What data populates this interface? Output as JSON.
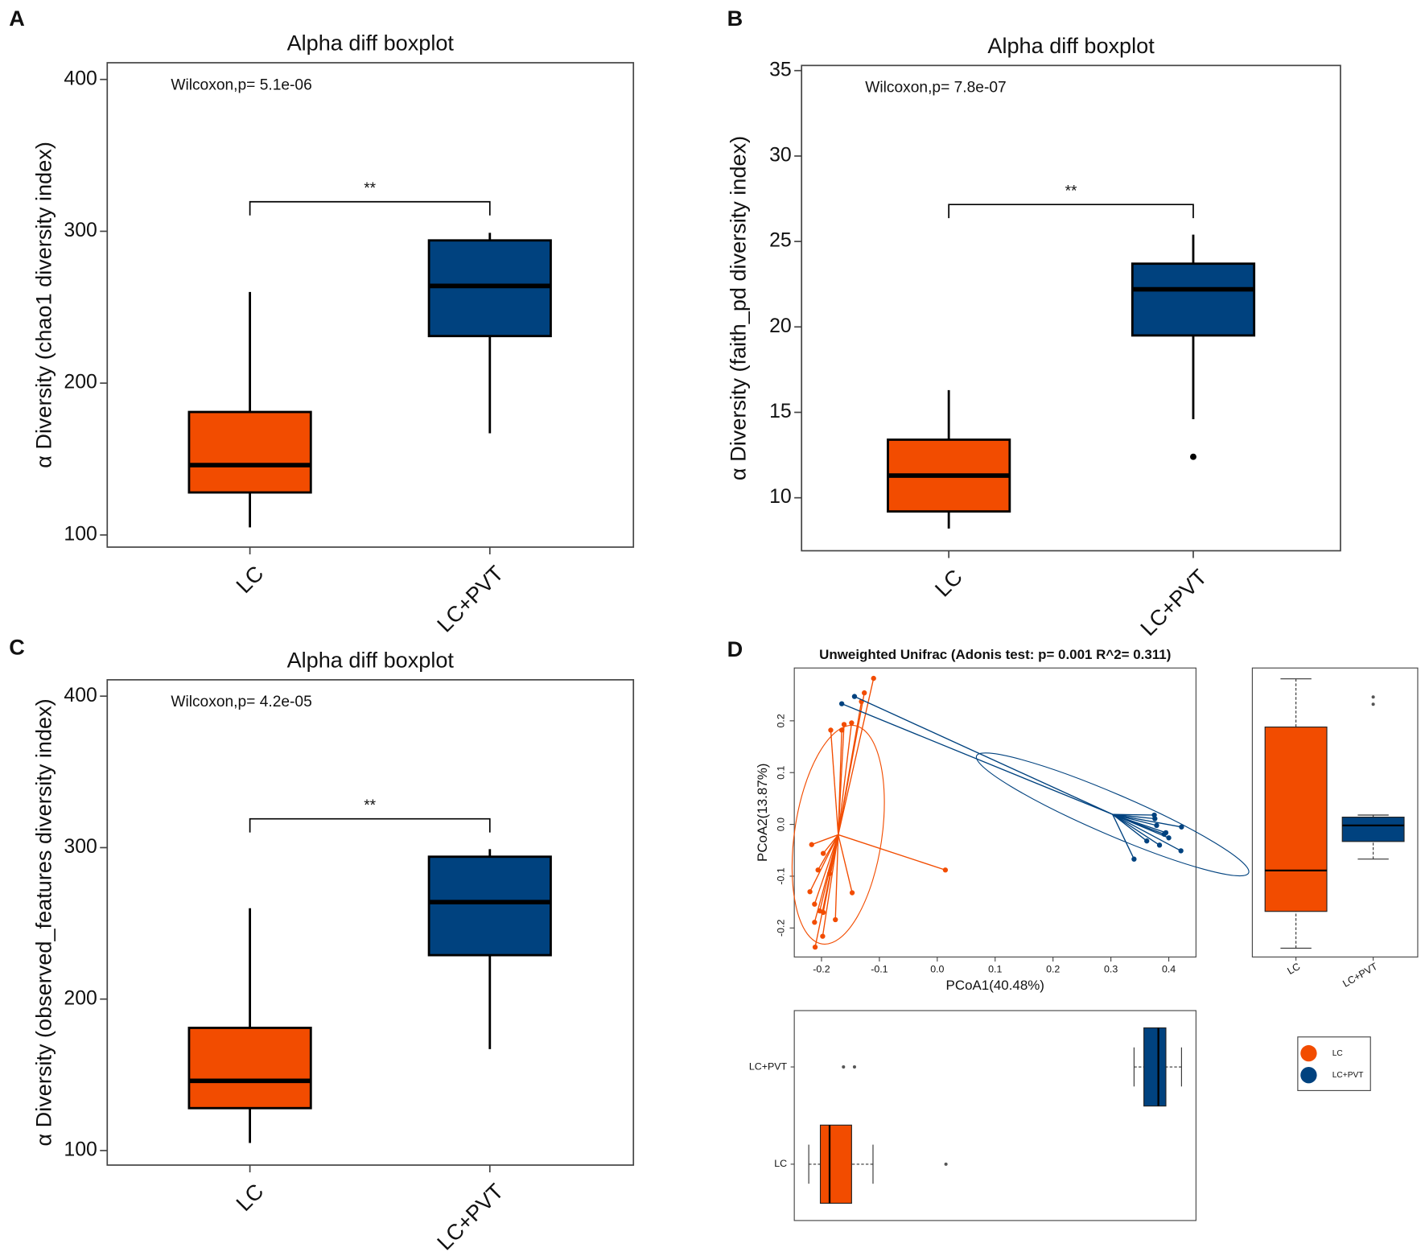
{
  "chart_data": [
    {
      "type": "boxplot",
      "panel": "A",
      "title": "Alpha diff boxplot",
      "annotation": "Wilcoxon,p= 5.1e-06",
      "significance": "**",
      "ylabel": "α Diversity (chao1 diversity index)",
      "categories": [
        "LC",
        "LC+PVT"
      ],
      "colors": [
        "#f24c00",
        "#00427f"
      ],
      "boxes": [
        {
          "min": 105,
          "q1": 128,
          "median": 146,
          "q3": 181,
          "max": 260,
          "outliers": []
        },
        {
          "min": 167,
          "q1": 231,
          "median": 264,
          "q3": 294,
          "max": 299,
          "outliers": []
        }
      ],
      "ylim": [
        92,
        411
      ],
      "yticks": [
        100,
        200,
        300,
        400
      ]
    },
    {
      "type": "boxplot",
      "panel": "B",
      "title": "Alpha diff boxplot",
      "annotation": "Wilcoxon,p= 7.8e-07",
      "significance": "**",
      "ylabel": "α Diversity (faith_pd diversity index)",
      "categories": [
        "LC",
        "LC+PVT"
      ],
      "colors": [
        "#f24c00",
        "#00427f"
      ],
      "boxes": [
        {
          "min": 8.2,
          "q1": 9.2,
          "median": 11.3,
          "q3": 13.4,
          "max": 16.3,
          "outliers": []
        },
        {
          "min": 14.6,
          "q1": 19.5,
          "median": 22.2,
          "q3": 23.7,
          "max": 25.4,
          "outliers": [
            12.4
          ]
        }
      ],
      "ylim": [
        6.9,
        35.3
      ],
      "yticks": [
        10,
        15,
        20,
        25,
        30,
        35
      ]
    },
    {
      "type": "boxplot",
      "panel": "C",
      "title": "Alpha diff boxplot",
      "annotation": "Wilcoxon,p= 4.2e-05",
      "significance": "**",
      "ylabel": "α Diversity (observed_features diversity index)",
      "categories": [
        "LC",
        "LC+PVT"
      ],
      "colors": [
        "#f24c00",
        "#00427f"
      ],
      "boxes": [
        {
          "min": 105,
          "q1": 128,
          "median": 146,
          "q3": 181,
          "max": 260,
          "outliers": []
        },
        {
          "min": 167,
          "q1": 229,
          "median": 264,
          "q3": 294,
          "max": 299,
          "outliers": []
        }
      ],
      "ylim": [
        90.4,
        410.8
      ],
      "yticks": [
        100,
        200,
        300,
        400
      ]
    },
    {
      "type": "scatter",
      "panel": "D",
      "title": "Unweighted Unifrac (Adonis test: p= 0.001  R^2= 0.311)",
      "xlabel": "PCoA1(40.48%)",
      "ylabel": "PCoA2(13.87%)",
      "xlim": [
        -0.247,
        0.447
      ],
      "ylim": [
        -0.256,
        0.302
      ],
      "xticks": [
        -0.2,
        -0.1,
        {
          "value": 0,
          "label": "0.0"
        },
        0.1,
        0.2,
        0.3,
        0.4
      ],
      "yticks": [
        -0.2,
        -0.1,
        {
          "value": 0,
          "label": "0.0"
        },
        0.1,
        0.2
      ],
      "series": [
        {
          "name": "LC",
          "color": "#f24c00",
          "x": [
            -0.11,
            -0.126,
            -0.131,
            -0.148,
            -0.161,
            -0.165,
            -0.184,
            -0.217,
            -0.197,
            -0.206,
            -0.186,
            -0.22,
            -0.212,
            -0.203,
            -0.197,
            -0.212,
            -0.176,
            -0.198,
            -0.211,
            -0.147,
            0.014
          ],
          "y": [
            0.282,
            0.254,
            0.237,
            0.196,
            0.193,
            0.182,
            0.182,
            -0.039,
            -0.056,
            -0.088,
            -0.095,
            -0.13,
            -0.154,
            -0.167,
            -0.17,
            -0.189,
            -0.184,
            -0.216,
            -0.237,
            -0.132,
            -0.088
          ]
        },
        {
          "name": "LC+PVT",
          "color": "#00427f",
          "x": [
            -0.143,
            -0.165,
            0.375,
            0.376,
            0.379,
            0.395,
            0.4,
            0.392,
            0.422,
            0.384,
            0.421,
            0.34,
            0.362
          ],
          "y": [
            0.247,
            0.233,
            0.018,
            0.011,
            -0.002,
            -0.016,
            -0.026,
            -0.019,
            -0.005,
            -0.04,
            -0.051,
            -0.067,
            -0.032
          ]
        }
      ],
      "y_marginal": [
        {
          "min": -0.239,
          "q1": -0.168,
          "median": -0.089,
          "q3": 0.188,
          "max": 0.281,
          "outliers": []
        },
        {
          "min": -0.067,
          "q1": -0.033,
          "median": -0.002,
          "q3": 0.014,
          "max": 0.018,
          "outliers": [
            0.246,
            0.232
          ]
        }
      ],
      "x_marginal": [
        {
          "min": -0.222,
          "q1": -0.202,
          "median": -0.186,
          "q3": -0.148,
          "max": -0.111,
          "outliers": [
            0.015
          ]
        },
        {
          "min": 0.34,
          "q1": 0.357,
          "median": 0.382,
          "q3": 0.395,
          "max": 0.422,
          "outliers": [
            -0.162,
            -0.143
          ]
        }
      ]
    }
  ]
}
